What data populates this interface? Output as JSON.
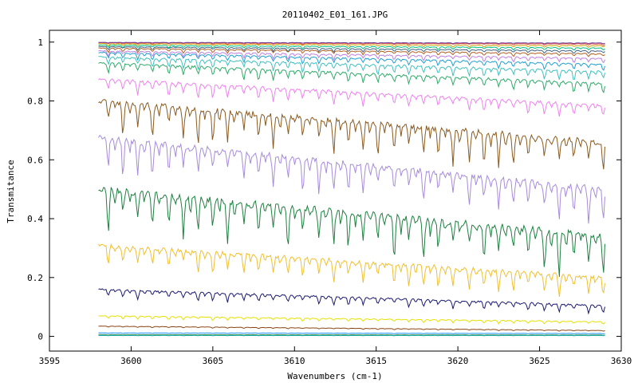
{
  "chart_data": {
    "type": "line",
    "title": "20110402_E01_161.JPG",
    "xlabel": "Wavenumbers (cm-1)",
    "ylabel": "Transmitance",
    "xlim": [
      3595,
      3630
    ],
    "ylim": [
      -0.05,
      1.04
    ],
    "xticks": [
      3595,
      3600,
      3605,
      3610,
      3615,
      3620,
      3625,
      3630
    ],
    "yticks": [
      0,
      0.2,
      0.4,
      0.6,
      0.8,
      1
    ],
    "ytick_labels": [
      "0",
      "0.2",
      "0.4",
      "0.6",
      "0.8",
      "1"
    ],
    "x_range": [
      3598,
      3629
    ],
    "dip_positions": [
      3598.6,
      3599.5,
      3600.4,
      3601.3,
      3602.3,
      3603.2,
      3604.1,
      3605.0,
      3605.9,
      3606.9,
      3607.8,
      3608.7,
      3609.6,
      3610.5,
      3611.5,
      3612.4,
      3613.3,
      3614.2,
      3615.1,
      3616.1,
      3617.0,
      3617.9,
      3618.8,
      3619.7,
      3620.7,
      3621.6,
      3622.5,
      3623.4,
      3624.3,
      3625.3,
      3626.2,
      3627.1,
      3628.0,
      3628.9
    ],
    "grid": false,
    "legend": "none",
    "series": [
      {
        "color": "#8b4513",
        "start": 0.035,
        "end": 0.02,
        "depth": 0.004
      },
      {
        "color": "#1e90ff",
        "start": 0.012,
        "end": 0.01,
        "depth": 0.002
      },
      {
        "color": "#2e8b57",
        "start": 0.006,
        "end": 0.005,
        "depth": 0.002
      },
      {
        "color": "#20b2aa",
        "start": 0.003,
        "end": 0.003,
        "depth": 0.001
      },
      {
        "color": "#e6e000",
        "start": 0.07,
        "end": 0.05,
        "depth": 0.012
      },
      {
        "color": "#191970",
        "start": 0.16,
        "end": 0.105,
        "depth": 0.03
      },
      {
        "color": "#f0c030",
        "start": 0.31,
        "end": 0.2,
        "depth": 0.08
      },
      {
        "color": "#1e8040",
        "start": 0.5,
        "end": 0.34,
        "depth": 0.15
      },
      {
        "color": "#a78bdc",
        "start": 0.675,
        "end": 0.5,
        "depth": 0.12
      },
      {
        "color": "#8b5a1e",
        "start": 0.8,
        "end": 0.66,
        "depth": 0.12
      },
      {
        "color": "#ee82ee",
        "start": 0.875,
        "end": 0.785,
        "depth": 0.05
      },
      {
        "color": "#2eaa6a",
        "start": 0.93,
        "end": 0.86,
        "depth": 0.04
      },
      {
        "color": "#40c0c0",
        "start": 0.95,
        "end": 0.9,
        "depth": 0.035
      },
      {
        "color": "#20a0d0",
        "start": 0.965,
        "end": 0.925,
        "depth": 0.025
      },
      {
        "color": "#c080e0",
        "start": 0.97,
        "end": 0.945,
        "depth": 0.02
      },
      {
        "color": "#b06020",
        "start": 0.98,
        "end": 0.96,
        "depth": 0.015
      },
      {
        "color": "#406080",
        "start": 0.985,
        "end": 0.97,
        "depth": 0.012
      },
      {
        "color": "#00c080",
        "start": 0.99,
        "end": 0.98,
        "depth": 0.01
      },
      {
        "color": "#d0a000",
        "start": 0.995,
        "end": 0.988,
        "depth": 0.008
      },
      {
        "color": "#e04040",
        "start": 0.998,
        "end": 0.994,
        "depth": 0.005
      },
      {
        "color": "#6a3d9a",
        "start": 0.999,
        "end": 0.997,
        "depth": 0.003
      }
    ]
  }
}
